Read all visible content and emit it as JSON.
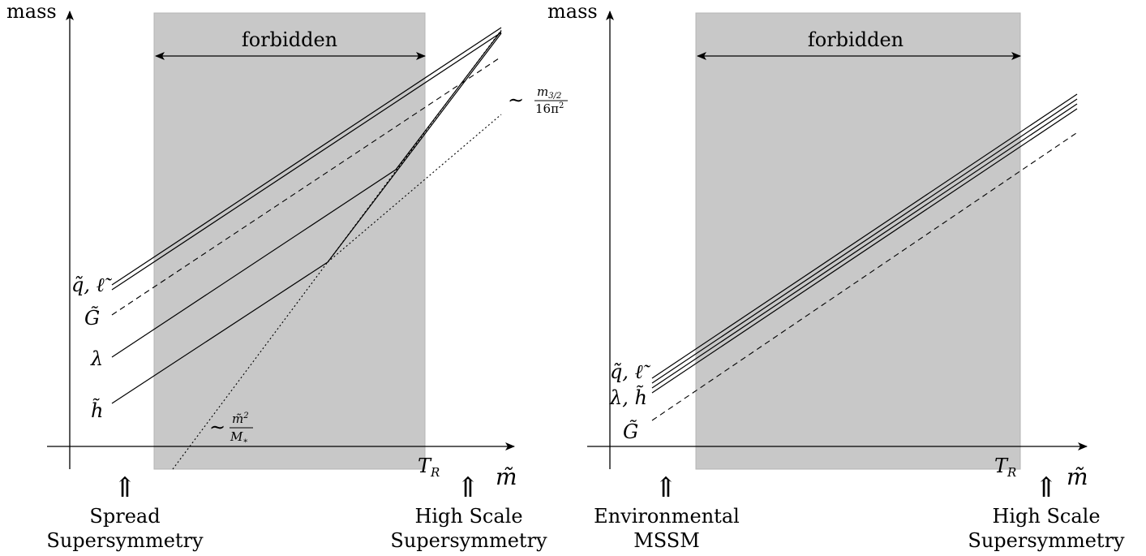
{
  "left_panel": {
    "y_axis_label": "mass",
    "x_axis_label": "m̃",
    "forbidden_label": "forbidden",
    "tr_label": "T",
    "tr_sub": "R",
    "lines": {
      "sfermion": "q̃, ℓ̃",
      "gravitino": "G̃",
      "gaugino": "λ",
      "higgsino": "h̃"
    },
    "annotations": {
      "upper_tilde": "∼",
      "upper_num_m": "m",
      "upper_num_sub": "3/2",
      "upper_den": "16π",
      "upper_den_sup": "2",
      "lower_tilde": "∼",
      "lower_num_m": "m̃",
      "lower_num_sup": "2",
      "lower_den_m": "M",
      "lower_den_sub": "∗"
    },
    "arrow_glyph": "⇑",
    "markers": [
      {
        "line1": "Spread",
        "line2": "Supersymmetry"
      },
      {
        "line1": "High Scale",
        "line2": "Supersymmetry"
      }
    ]
  },
  "right_panel": {
    "y_axis_label": "mass",
    "x_axis_label": "m̃",
    "forbidden_label": "forbidden",
    "tr_label": "T",
    "tr_sub": "R",
    "lines": {
      "sfermion": "q̃, ℓ̃",
      "gaugino_higgsino": "λ, h̃",
      "gravitino": "G̃"
    },
    "arrow_glyph": "⇑",
    "markers": [
      {
        "line1": "Environmental",
        "line2": "MSSM"
      },
      {
        "line1": "High Scale",
        "line2": "Supersymmetry"
      }
    ]
  },
  "colors": {
    "forbidden_fill": "#c8c8c8",
    "forbidden_stroke": "#b4b4b4",
    "ink": "#000000"
  }
}
